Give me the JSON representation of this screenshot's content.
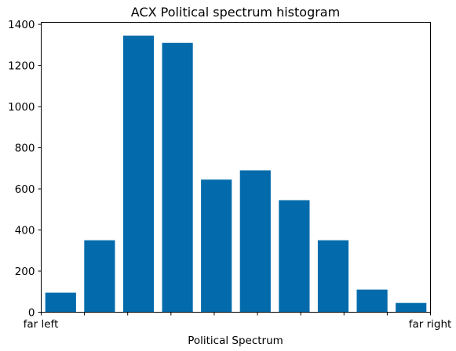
{
  "chart_data": {
    "type": "bar",
    "title": "ACX Political spectrum histogram",
    "xlabel": "Political Spectrum",
    "ylabel": "",
    "values": [
      95,
      350,
      1345,
      1310,
      645,
      690,
      545,
      350,
      110,
      45
    ],
    "x_tick_labels": {
      "left": "far left",
      "right": "far right"
    },
    "yticks": [
      0,
      200,
      400,
      600,
      800,
      1000,
      1200,
      1400
    ],
    "ylim": [
      0,
      1410
    ],
    "bar_color": "#036BAB",
    "grid": false,
    "legend": "none"
  }
}
